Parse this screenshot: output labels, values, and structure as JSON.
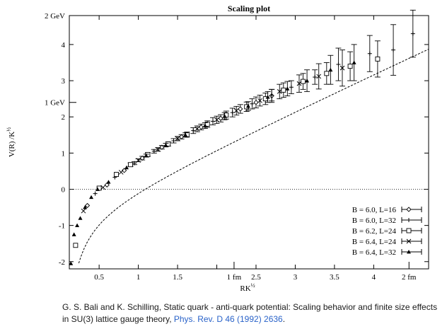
{
  "chart_data": {
    "type": "scatter",
    "title": "Scaling plot",
    "xlabel": "RK^½",
    "ylabel": "V(R) /K^½",
    "xlim": [
      0.12,
      4.7
    ],
    "ylim": [
      -2.2,
      4.8
    ],
    "x_ticks": [
      0.5,
      1,
      1.5,
      2,
      2.5,
      3,
      3.5,
      4
    ],
    "x_tick_labels": [
      "0.5",
      "1",
      "1.5",
      "",
      "2.5",
      "3",
      "3.5",
      "4"
    ],
    "y_ticks": [
      -2,
      -1,
      0,
      1,
      2,
      3,
      4
    ],
    "y_tick_labels": [
      "-2",
      "-1",
      "0",
      "1",
      "2",
      "3",
      "4"
    ],
    "fm_ticks": [
      {
        "x": 2.22,
        "label": "1 fm"
      },
      {
        "x": 4.45,
        "label": "2 fm"
      }
    ],
    "gev_ticks": [
      {
        "y": 2.4,
        "label": "1 GeV"
      },
      {
        "y": 4.8,
        "label": "2 GeV"
      }
    ],
    "zero_line": 0,
    "fit_curve": {
      "const": 0.75,
      "coulomb": 0.37,
      "string": 1.0
    },
    "legend": {
      "placement": "bottom-right",
      "entries": [
        {
          "label": "B = 6.0, L=16",
          "marker": "diamond"
        },
        {
          "label": "B = 6.0, L=32",
          "marker": "plus"
        },
        {
          "label": "B = 6.2, L=24",
          "marker": "square"
        },
        {
          "label": "B = 6.4, L=24",
          "marker": "cross"
        },
        {
          "label": "B = 6.4, L=32",
          "marker": "triangle"
        }
      ]
    },
    "series": [
      {
        "name": "B = 6.0, L=16",
        "marker": "diamond",
        "points": [
          [
            0.35,
            -0.45,
            0
          ],
          [
            0.6,
            0.12,
            0
          ],
          [
            0.82,
            0.52,
            0
          ],
          [
            1.05,
            0.86,
            0.05
          ],
          [
            1.3,
            1.16,
            0.05
          ],
          [
            1.55,
            1.45,
            0.06
          ],
          [
            1.8,
            1.72,
            0.08
          ],
          [
            2.05,
            1.96,
            0.1
          ],
          [
            2.3,
            2.22,
            0.12
          ],
          [
            2.5,
            2.4,
            0.15
          ],
          [
            2.7,
            2.58,
            0.18
          ]
        ]
      },
      {
        "name": "B = 6.0, L=32",
        "marker": "plus",
        "points": [
          [
            0.45,
            -0.12,
            0
          ],
          [
            0.7,
            0.33,
            0
          ],
          [
            0.95,
            0.72,
            0.04
          ],
          [
            1.2,
            1.05,
            0.05
          ],
          [
            1.45,
            1.34,
            0.06
          ],
          [
            1.7,
            1.62,
            0.08
          ],
          [
            1.95,
            1.88,
            0.1
          ],
          [
            2.2,
            2.12,
            0.12
          ],
          [
            2.45,
            2.36,
            0.14
          ],
          [
            2.7,
            2.6,
            0.16
          ],
          [
            2.95,
            2.82,
            0.18
          ],
          [
            3.25,
            3.1,
            0.2
          ],
          [
            3.55,
            3.45,
            0.45
          ],
          [
            3.95,
            3.75,
            0.5
          ],
          [
            4.25,
            3.85,
            0.7
          ],
          [
            4.5,
            4.3,
            0.65
          ]
        ]
      },
      {
        "name": "B = 6.2, L=24",
        "marker": "square",
        "points": [
          [
            0.2,
            -1.55,
            0
          ],
          [
            0.5,
            0.03,
            0
          ],
          [
            0.72,
            0.41,
            0
          ],
          [
            0.9,
            0.68,
            0.05
          ],
          [
            1.12,
            0.96,
            0.05
          ],
          [
            1.38,
            1.25,
            0.06
          ],
          [
            1.62,
            1.51,
            0.07
          ],
          [
            1.88,
            1.8,
            0.09
          ],
          [
            2.12,
            2.05,
            0.11
          ],
          [
            2.38,
            2.28,
            0.13
          ],
          [
            2.62,
            2.5,
            0.16
          ],
          [
            2.85,
            2.74,
            0.2
          ],
          [
            3.1,
            2.98,
            0.22
          ],
          [
            3.4,
            3.2,
            0.3
          ],
          [
            3.7,
            3.4,
            0.4
          ],
          [
            4.05,
            3.6,
            0.5
          ]
        ]
      },
      {
        "name": "B = 6.4, L=24",
        "marker": "cross",
        "points": [
          [
            0.3,
            -0.6,
            0
          ],
          [
            0.55,
            0.05,
            0
          ],
          [
            0.78,
            0.47,
            0
          ],
          [
            1.0,
            0.8,
            0.04
          ],
          [
            1.25,
            1.1,
            0.05
          ],
          [
            1.5,
            1.4,
            0.06
          ],
          [
            1.75,
            1.67,
            0.08
          ],
          [
            2.0,
            1.92,
            0.1
          ],
          [
            2.25,
            2.17,
            0.12
          ],
          [
            2.55,
            2.45,
            0.15
          ],
          [
            2.8,
            2.7,
            0.2
          ],
          [
            3.05,
            2.92,
            0.24
          ],
          [
            3.3,
            3.12,
            0.35
          ],
          [
            3.6,
            3.35,
            0.5
          ]
        ]
      },
      {
        "name": "B = 6.4, L=32",
        "marker": "triangle",
        "points": [
          [
            0.14,
            -2.05,
            0
          ],
          [
            0.18,
            -1.25,
            0
          ],
          [
            0.22,
            -1.0,
            0
          ],
          [
            0.26,
            -0.8,
            0
          ],
          [
            0.32,
            -0.5,
            0
          ],
          [
            0.4,
            -0.22,
            0
          ],
          [
            0.48,
            0.0,
            0
          ],
          [
            0.62,
            0.2,
            0
          ],
          [
            0.85,
            0.6,
            0
          ],
          [
            1.1,
            0.93,
            0.04
          ],
          [
            1.35,
            1.22,
            0.05
          ],
          [
            1.6,
            1.5,
            0.06
          ],
          [
            1.85,
            1.76,
            0.08
          ],
          [
            2.1,
            2.02,
            0.1
          ],
          [
            2.4,
            2.3,
            0.12
          ],
          [
            2.65,
            2.55,
            0.15
          ],
          [
            2.9,
            2.78,
            0.2
          ],
          [
            3.15,
            3.0,
            0.3
          ],
          [
            3.45,
            3.3,
            0.4
          ],
          [
            3.75,
            3.5,
            0.5
          ]
        ]
      }
    ]
  },
  "citation": {
    "text": "G. S. Bali and K. Schilling, Static quark - anti-quark potential: Scaling behavior and finite size effects in SU(3) lattice gauge theory, ",
    "link_text": "Phys. Rev. D 46 (1992) 2636",
    "suffix": "."
  }
}
